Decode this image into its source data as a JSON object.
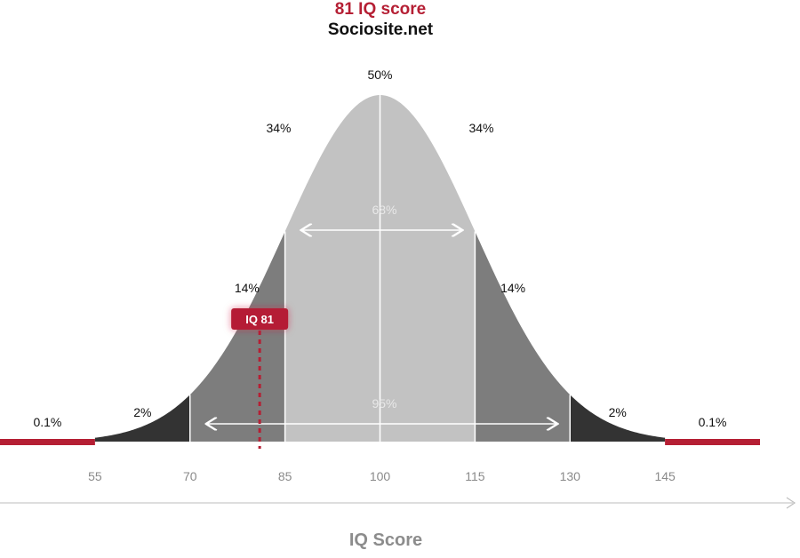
{
  "chart_data": {
    "type": "area",
    "title": "81 IQ score",
    "subtitle": "Sociosite.net",
    "xlabel": "IQ Score",
    "mean": 100,
    "sd": 15,
    "xlim": [
      40,
      160
    ],
    "ticks": [
      55,
      70,
      85,
      100,
      115,
      130,
      145
    ],
    "regions": [
      {
        "from": 40,
        "to": 55,
        "label": "0.1%",
        "color": "#b51f34"
      },
      {
        "from": 55,
        "to": 70,
        "label": "2%",
        "color": "#333333"
      },
      {
        "from": 70,
        "to": 85,
        "label": "14%",
        "color": "#7d7d7d"
      },
      {
        "from": 85,
        "to": 100,
        "label": "34%",
        "color": "#c2c2c2"
      },
      {
        "from": 100,
        "to": 115,
        "label": "34%",
        "color": "#c2c2c2"
      },
      {
        "from": 115,
        "to": 130,
        "label": "14%",
        "color": "#7d7d7d"
      },
      {
        "from": 130,
        "to": 145,
        "label": "2%",
        "color": "#333333"
      },
      {
        "from": 145,
        "to": 160,
        "label": "0.1%",
        "color": "#b51f34"
      }
    ],
    "peak_label": "50%",
    "spans": [
      {
        "from": 85,
        "to": 115,
        "label": "68%"
      },
      {
        "from": 70,
        "to": 130,
        "label": "95%"
      }
    ],
    "marker": {
      "value": 81,
      "label": "IQ 81",
      "color": "#b51f34"
    }
  }
}
